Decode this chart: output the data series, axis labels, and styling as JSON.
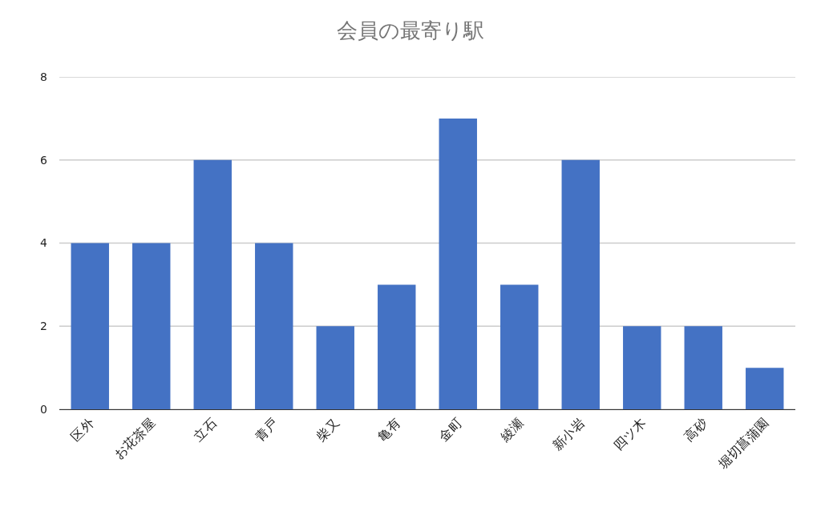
{
  "chart_data": {
    "type": "bar",
    "title": "会員の最寄り駅",
    "categories": [
      "区外",
      "お花茶屋",
      "立石",
      "青戸",
      "柴又",
      "亀有",
      "金町",
      "綾瀬",
      "新小岩",
      "四ツ木",
      "高砂",
      "堀切菖蒲園"
    ],
    "values": [
      4,
      4,
      6,
      4,
      2,
      3,
      7,
      3,
      6,
      2,
      2,
      1
    ],
    "color": "#4472c4",
    "ylim": [
      0,
      8
    ],
    "yticks": [
      0,
      2,
      4,
      6,
      8
    ],
    "grid": "y"
  }
}
